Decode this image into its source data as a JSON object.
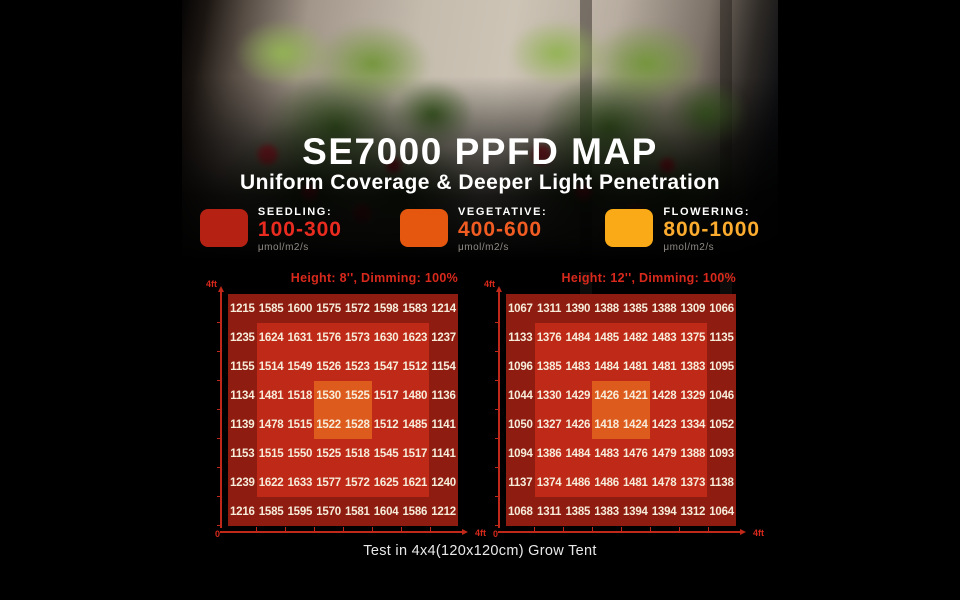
{
  "page": {
    "title": "SE7000 PPFD MAP",
    "subtitle": "Uniform Coverage & Deeper Light Penetration",
    "caption": "Test in 4x4(120x120cm) Grow Tent"
  },
  "colors": {
    "map_title_red": "#d8291c",
    "axis_red": "#c0281a",
    "cell_text": "#f6ecd9"
  },
  "legend": {
    "items": [
      {
        "key": "seedling",
        "label": "SEEDLING:",
        "range": "100-300",
        "unit": "μmol/m2/s",
        "swatch_color": "#b52112",
        "range_color": "#ea2b1f"
      },
      {
        "key": "vegetative",
        "label": "VEGETATIVE:",
        "range": "400-600",
        "unit": "μmol/m2/s",
        "swatch_color": "#e5560f",
        "range_color": "#f15c22"
      },
      {
        "key": "flowering",
        "label": "FLOWERING:",
        "range": "800-1000",
        "unit": "μmol/m2/s",
        "swatch_color": "#fbaa17",
        "range_color": "#fbab2e"
      }
    ]
  },
  "chart_data": [
    {
      "type": "heatmap",
      "title": "Height: 8'', Dimming: 100%",
      "x_axis": {
        "origin_label": "0",
        "end_label": "4ft"
      },
      "y_axis": {
        "end_label": "4ft"
      },
      "grid_size": "8x8",
      "values": [
        [
          1215,
          1585,
          1600,
          1575,
          1572,
          1598,
          1583,
          1214
        ],
        [
          1235,
          1624,
          1631,
          1576,
          1573,
          1630,
          1623,
          1237
        ],
        [
          1155,
          1514,
          1549,
          1526,
          1523,
          1547,
          1512,
          1154
        ],
        [
          1134,
          1481,
          1518,
          1530,
          1525,
          1517,
          1480,
          1136
        ],
        [
          1139,
          1478,
          1515,
          1522,
          1528,
          1512,
          1485,
          1141
        ],
        [
          1153,
          1515,
          1550,
          1525,
          1518,
          1545,
          1517,
          1141
        ],
        [
          1239,
          1622,
          1633,
          1577,
          1572,
          1625,
          1621,
          1240
        ],
        [
          1216,
          1585,
          1595,
          1570,
          1581,
          1604,
          1586,
          1212
        ]
      ],
      "zones": {
        "outer_color": "#8e1c11",
        "mid_color": "#bf2918",
        "hot_color": "#de5b1e",
        "mid": {
          "rows": [
            1,
            6
          ],
          "cols": [
            1,
            6
          ]
        },
        "hot": {
          "rows": [
            3,
            4
          ],
          "cols": [
            3,
            4
          ]
        }
      }
    },
    {
      "type": "heatmap",
      "title": "Height: 12'', Dimming: 100%",
      "x_axis": {
        "origin_label": "0",
        "end_label": "4ft"
      },
      "y_axis": {
        "end_label": "4ft"
      },
      "grid_size": "8x8",
      "values": [
        [
          1067,
          1311,
          1390,
          1388,
          1385,
          1388,
          1309,
          1066
        ],
        [
          1133,
          1376,
          1484,
          1485,
          1482,
          1483,
          1375,
          1135
        ],
        [
          1096,
          1385,
          1483,
          1484,
          1481,
          1481,
          1383,
          1095
        ],
        [
          1044,
          1330,
          1429,
          1426,
          1421,
          1428,
          1329,
          1046
        ],
        [
          1050,
          1327,
          1426,
          1418,
          1424,
          1423,
          1334,
          1052
        ],
        [
          1094,
          1386,
          1484,
          1483,
          1476,
          1479,
          1388,
          1093
        ],
        [
          1137,
          1374,
          1486,
          1486,
          1481,
          1478,
          1373,
          1138
        ],
        [
          1068,
          1311,
          1385,
          1383,
          1394,
          1394,
          1312,
          1064
        ]
      ],
      "zones": {
        "outer_color": "#8e1c11",
        "mid_color": "#bf2918",
        "hot_color": "#de5b1e",
        "mid": {
          "rows": [
            1,
            6
          ],
          "cols": [
            1,
            6
          ]
        },
        "hot": {
          "rows": [
            3,
            4
          ],
          "cols": [
            3,
            4
          ]
        }
      }
    }
  ]
}
